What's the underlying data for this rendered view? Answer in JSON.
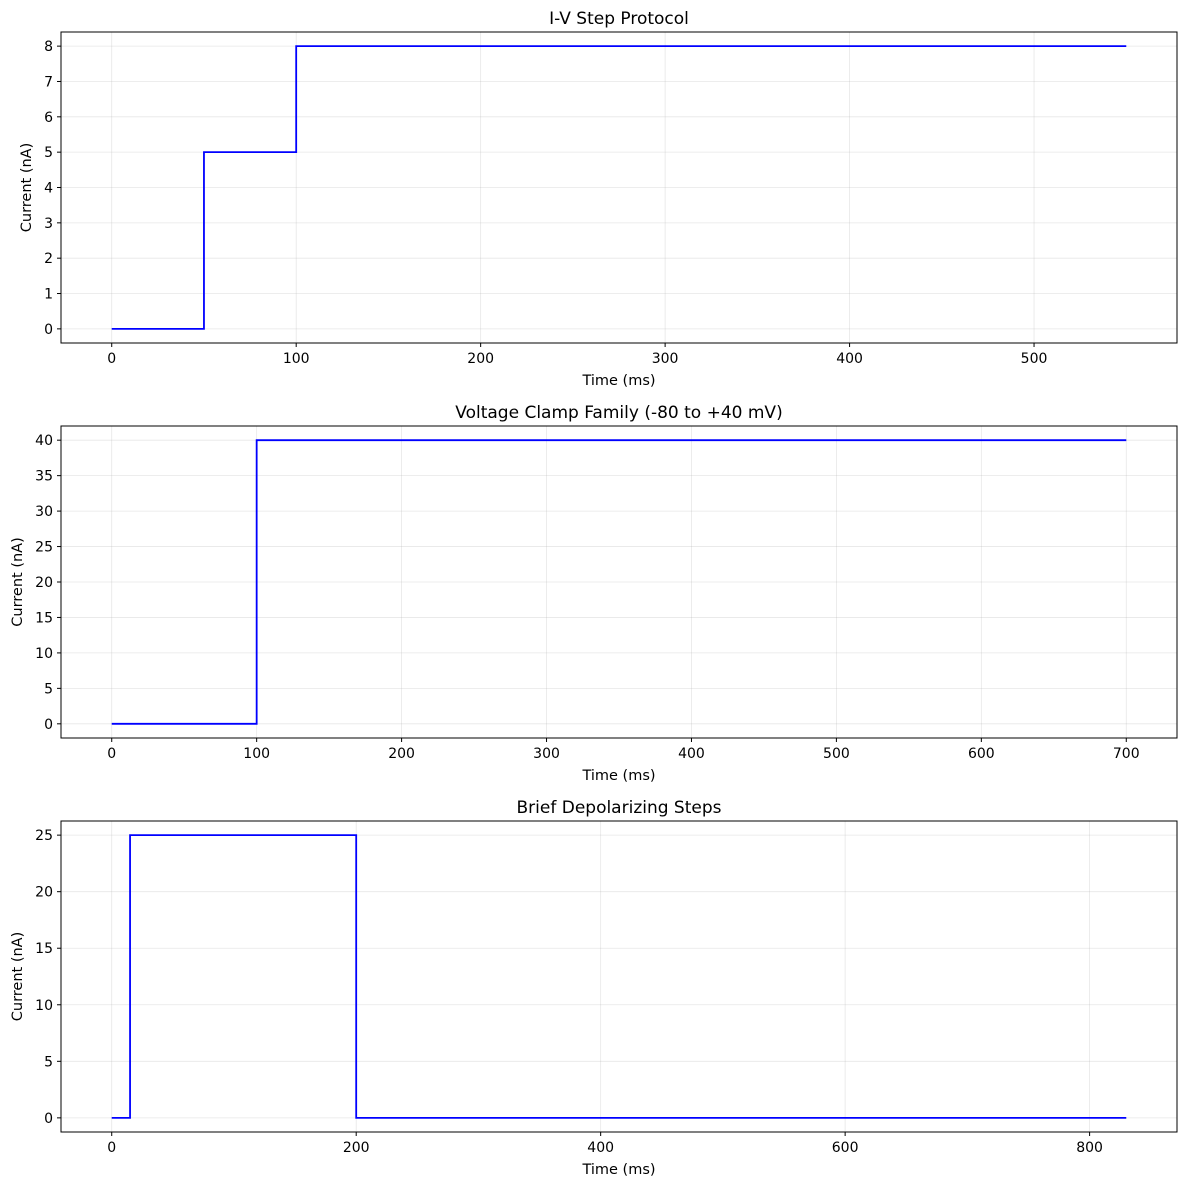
{
  "chart_data": [
    {
      "type": "line",
      "title": "I-V Step Protocol",
      "xlabel": "Time (ms)",
      "ylabel": "Current (nA)",
      "xlim": [
        -27.5,
        577.5
      ],
      "ylim": [
        -0.4,
        8.4
      ],
      "xticks": [
        0,
        100,
        200,
        300,
        400,
        500
      ],
      "yticks": [
        0,
        1,
        2,
        3,
        4,
        5,
        6,
        7,
        8
      ],
      "grid": true,
      "color": "#0000ff",
      "x": [
        0,
        50,
        50,
        100,
        100,
        550
      ],
      "y": [
        0,
        0,
        5,
        5,
        8,
        8
      ]
    },
    {
      "type": "line",
      "title": "Voltage Clamp Family (-80 to +40 mV)",
      "xlabel": "Time (ms)",
      "ylabel": "Current (nA)",
      "xlim": [
        -35,
        735
      ],
      "ylim": [
        -2,
        42
      ],
      "xticks": [
        0,
        100,
        200,
        300,
        400,
        500,
        600,
        700
      ],
      "yticks": [
        0,
        5,
        10,
        15,
        20,
        25,
        30,
        35,
        40
      ],
      "grid": true,
      "color": "#0000ff",
      "x": [
        0,
        100,
        100,
        700
      ],
      "y": [
        0,
        0,
        40,
        40
      ]
    },
    {
      "type": "line",
      "title": "Brief Depolarizing Steps",
      "xlabel": "Time (ms)",
      "ylabel": "Current (nA)",
      "xlim": [
        -41.5,
        871.5
      ],
      "ylim": [
        -1.25,
        26.25
      ],
      "xticks": [
        0,
        200,
        400,
        600,
        800
      ],
      "yticks": [
        0,
        5,
        10,
        15,
        20,
        25
      ],
      "grid": true,
      "color": "#0000ff",
      "x": [
        0,
        15,
        15,
        200,
        200,
        830
      ],
      "y": [
        0,
        0,
        25,
        25,
        0,
        0
      ]
    }
  ]
}
